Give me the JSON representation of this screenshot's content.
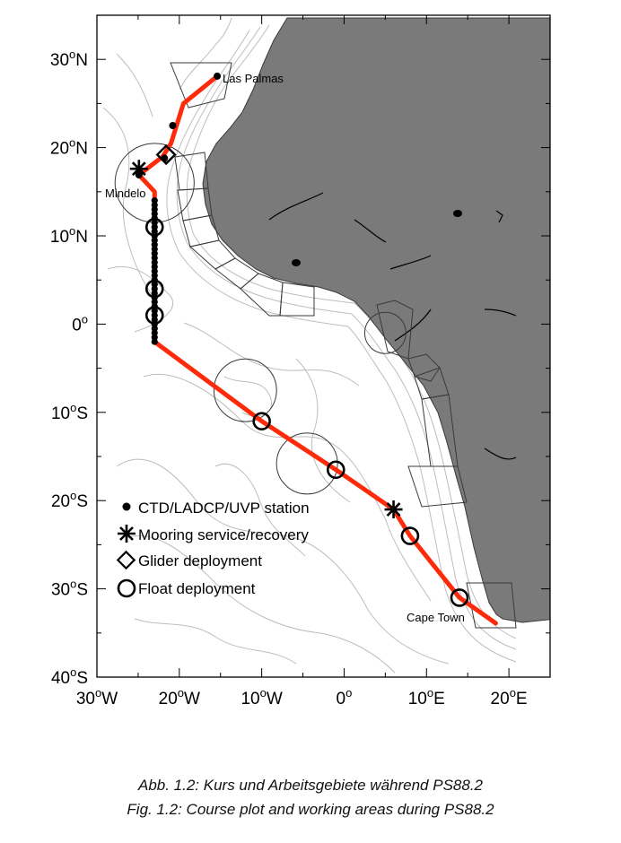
{
  "map": {
    "lon_range": [
      -30,
      25
    ],
    "lat_range": [
      -40,
      35
    ],
    "x_ticks": [
      {
        "value": -30,
        "label": "30°W"
      },
      {
        "value": -20,
        "label": "20°W"
      },
      {
        "value": -10,
        "label": "10°W"
      },
      {
        "value": 0,
        "label": "0°"
      },
      {
        "value": 10,
        "label": "10°E"
      },
      {
        "value": 20,
        "label": "20°E"
      }
    ],
    "y_ticks": [
      {
        "value": 30,
        "label": "30°N"
      },
      {
        "value": 20,
        "label": "20°N"
      },
      {
        "value": 10,
        "label": "10°N"
      },
      {
        "value": 0,
        "label": "0°"
      },
      {
        "value": -10,
        "label": "10°S"
      },
      {
        "value": -20,
        "label": "20°S"
      },
      {
        "value": -30,
        "label": "30°S"
      },
      {
        "value": -40,
        "label": "40°S"
      }
    ],
    "colors": {
      "land": "#7a7a7a",
      "track": "#ff2a0a",
      "bathymetry": "#b8b8b8",
      "markers": "#000000"
    },
    "places": [
      {
        "name": "Las Palmas",
        "lon": -15.4,
        "lat": 28.1
      },
      {
        "name": "Mindelo",
        "lon": -24.9,
        "lat": 16.9
      },
      {
        "name": "Cape Town",
        "lon": 18.4,
        "lat": -33.9
      }
    ],
    "track": [
      [
        -15.4,
        28.1
      ],
      [
        -19.5,
        25.0
      ],
      [
        -21.0,
        20.5
      ],
      [
        -22.0,
        19.0
      ],
      [
        -24.9,
        16.9
      ],
      [
        -23.0,
        15.0
      ],
      [
        -23.0,
        -2.0
      ],
      [
        -10.0,
        -11.0
      ],
      [
        -1.0,
        -16.5
      ],
      [
        6.0,
        -21.0
      ],
      [
        8.0,
        -24.0
      ],
      [
        14.0,
        -31.0
      ],
      [
        18.4,
        -33.9
      ]
    ],
    "ctd_stations": [
      [
        -15.4,
        28.1
      ],
      [
        -20.8,
        22.5
      ],
      [
        -21.8,
        18.8
      ],
      [
        -24.9,
        16.9
      ]
    ],
    "ctd_transect": {
      "lon": -23.0,
      "lat_start": 14.0,
      "lat_end": -2.0,
      "step": 0.5
    },
    "moorings": [
      [
        -24.9,
        17.6
      ],
      [
        6.0,
        -21.0
      ]
    ],
    "gliders": [
      [
        -21.6,
        19.2
      ]
    ],
    "floats": [
      [
        -23.0,
        11.0
      ],
      [
        -23.0,
        4.0
      ],
      [
        -23.0,
        1.0
      ],
      [
        -10.0,
        -11.0
      ],
      [
        -1.0,
        -16.5
      ],
      [
        8.0,
        -24.0
      ],
      [
        14.0,
        -31.0
      ]
    ],
    "working_areas": [
      {
        "lon": -23.0,
        "lat": 16.0,
        "r": 4.8
      },
      {
        "lon": -12.0,
        "lat": -7.5,
        "r": 3.8
      },
      {
        "lon": -4.5,
        "lat": -15.8,
        "r": 3.7
      },
      {
        "lon": 5.0,
        "lat": -1.0,
        "r": 2.5
      }
    ]
  },
  "legend": {
    "items": [
      {
        "symbol": "dot",
        "label": "CTD/LADCP/UVP station"
      },
      {
        "symbol": "asterisk",
        "label": "Mooring service/recovery"
      },
      {
        "symbol": "diamond",
        "label": "Glider deployment"
      },
      {
        "symbol": "circle",
        "label": "Float deployment"
      }
    ]
  },
  "captions": {
    "german": "Abb. 1.2: Kurs und Arbeitsgebiete während PS88.2",
    "english": "Fig. 1.2: Course plot and working areas during PS88.2"
  }
}
